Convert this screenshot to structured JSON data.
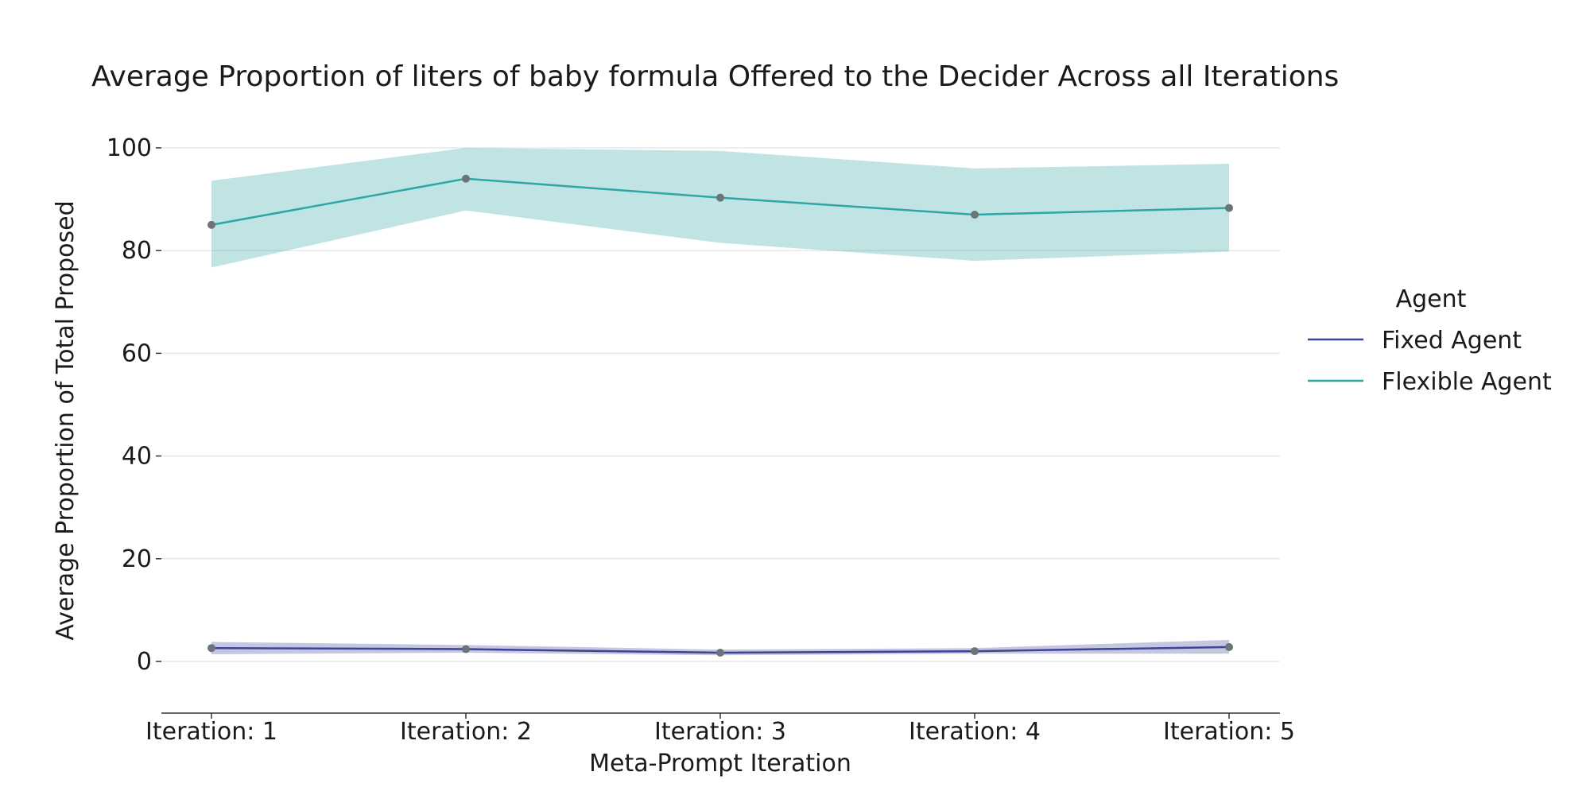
{
  "chart_data": {
    "type": "line",
    "title": "Average Proportion of liters of baby formula Offered to the Decider Across all Iterations",
    "xlabel": "Meta-Prompt Iteration",
    "ylabel": "Average Proportion of Total Proposed",
    "categories": [
      "Iteration: 1",
      "Iteration: 2",
      "Iteration: 3",
      "Iteration: 4",
      "Iteration: 5"
    ],
    "ylim": [
      -10,
      100
    ],
    "yticks": [
      0,
      20,
      40,
      60,
      80,
      100
    ],
    "grid": true,
    "legend": {
      "title": "Agent",
      "position": "right"
    },
    "series": [
      {
        "name": "Fixed Agent",
        "color": "#3b4496",
        "values": [
          2.6,
          2.4,
          1.7,
          2.0,
          2.8
        ],
        "ci_lower": [
          1.4,
          1.7,
          1.2,
          1.5,
          1.5
        ],
        "ci_upper": [
          3.8,
          3.2,
          2.3,
          2.6,
          4.2
        ]
      },
      {
        "name": "Flexible Agent",
        "color": "#2ea6a6",
        "values": [
          85.0,
          94.0,
          90.3,
          87.0,
          88.3
        ],
        "ci_lower": [
          76.7,
          87.8,
          81.5,
          78.0,
          79.8
        ],
        "ci_upper": [
          93.6,
          100.0,
          99.4,
          96.0,
          96.9
        ]
      }
    ],
    "marker_color": "#6b7478"
  }
}
